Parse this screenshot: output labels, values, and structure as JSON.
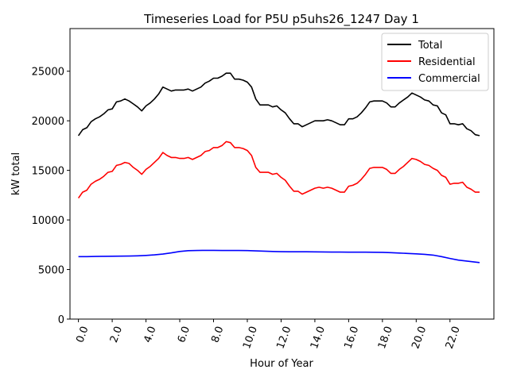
{
  "chart_data": {
    "type": "line",
    "title": "Timeseries Load for P5U p5uhs26_1247  Day 1",
    "xlabel": "Hour of Year",
    "ylabel": "kW total",
    "xlim": [
      -0.5,
      24.6
    ],
    "ylim": [
      0,
      29300
    ],
    "x_ticks": [
      0,
      2,
      4,
      6,
      8,
      10,
      12,
      14,
      16,
      18,
      20,
      22
    ],
    "x_tick_labels": [
      "0.0",
      "2.0",
      "4.0",
      "6.0",
      "8.0",
      "10.0",
      "12.0",
      "14.0",
      "16.0",
      "18.0",
      "20.0",
      "22.0"
    ],
    "y_ticks": [
      0,
      5000,
      10000,
      15000,
      20000,
      25000
    ],
    "y_tick_labels": [
      "0",
      "5000",
      "10000",
      "15000",
      "20000",
      "25000"
    ],
    "legend_position": "top-right",
    "grid": false,
    "series": [
      {
        "name": "Total",
        "color": "#000000",
        "points": [
          [
            0.0,
            18500
          ],
          [
            0.25,
            19100
          ],
          [
            0.5,
            19300
          ],
          [
            0.75,
            19900
          ],
          [
            1.0,
            20200
          ],
          [
            1.25,
            20400
          ],
          [
            1.5,
            20700
          ],
          [
            1.75,
            21100
          ],
          [
            2.0,
            21200
          ],
          [
            2.25,
            21900
          ],
          [
            2.5,
            22000
          ],
          [
            2.75,
            22200
          ],
          [
            3.0,
            22000
          ],
          [
            3.25,
            21700
          ],
          [
            3.5,
            21400
          ],
          [
            3.75,
            21000
          ],
          [
            4.0,
            21500
          ],
          [
            4.25,
            21800
          ],
          [
            4.5,
            22200
          ],
          [
            4.75,
            22700
          ],
          [
            5.0,
            23400
          ],
          [
            5.25,
            23200
          ],
          [
            5.5,
            23000
          ],
          [
            5.75,
            23100
          ],
          [
            6.0,
            23100
          ],
          [
            6.25,
            23100
          ],
          [
            6.5,
            23200
          ],
          [
            6.75,
            23000
          ],
          [
            7.0,
            23200
          ],
          [
            7.25,
            23400
          ],
          [
            7.5,
            23800
          ],
          [
            7.75,
            24000
          ],
          [
            8.0,
            24300
          ],
          [
            8.25,
            24300
          ],
          [
            8.5,
            24500
          ],
          [
            8.75,
            24800
          ],
          [
            9.0,
            24800
          ],
          [
            9.25,
            24200
          ],
          [
            9.5,
            24200
          ],
          [
            9.75,
            24100
          ],
          [
            10.0,
            23900
          ],
          [
            10.25,
            23400
          ],
          [
            10.5,
            22200
          ],
          [
            10.75,
            21600
          ],
          [
            11.0,
            21600
          ],
          [
            11.25,
            21600
          ],
          [
            11.5,
            21400
          ],
          [
            11.75,
            21500
          ],
          [
            12.0,
            21100
          ],
          [
            12.25,
            20800
          ],
          [
            12.5,
            20200
          ],
          [
            12.75,
            19700
          ],
          [
            13.0,
            19700
          ],
          [
            13.25,
            19400
          ],
          [
            13.5,
            19600
          ],
          [
            13.75,
            19800
          ],
          [
            14.0,
            20000
          ],
          [
            14.25,
            20000
          ],
          [
            14.5,
            20000
          ],
          [
            14.75,
            20100
          ],
          [
            15.0,
            20000
          ],
          [
            15.25,
            19800
          ],
          [
            15.5,
            19600
          ],
          [
            15.75,
            19600
          ],
          [
            16.0,
            20200
          ],
          [
            16.25,
            20200
          ],
          [
            16.5,
            20400
          ],
          [
            16.75,
            20800
          ],
          [
            17.0,
            21300
          ],
          [
            17.25,
            21900
          ],
          [
            17.5,
            22000
          ],
          [
            17.75,
            22000
          ],
          [
            18.0,
            22000
          ],
          [
            18.25,
            21800
          ],
          [
            18.5,
            21400
          ],
          [
            18.75,
            21400
          ],
          [
            19.0,
            21800
          ],
          [
            19.25,
            22100
          ],
          [
            19.5,
            22400
          ],
          [
            19.75,
            22800
          ],
          [
            20.0,
            22600
          ],
          [
            20.25,
            22400
          ],
          [
            20.5,
            22100
          ],
          [
            20.75,
            22000
          ],
          [
            21.0,
            21600
          ],
          [
            21.25,
            21500
          ],
          [
            21.5,
            20800
          ],
          [
            21.75,
            20600
          ],
          [
            22.0,
            19700
          ],
          [
            22.25,
            19700
          ],
          [
            22.5,
            19600
          ],
          [
            22.75,
            19700
          ],
          [
            23.0,
            19200
          ],
          [
            23.25,
            19000
          ],
          [
            23.5,
            18600
          ],
          [
            23.75,
            18500
          ]
        ]
      },
      {
        "name": "Residential",
        "color": "#ff0000",
        "points": [
          [
            0.0,
            12200
          ],
          [
            0.25,
            12800
          ],
          [
            0.5,
            13000
          ],
          [
            0.75,
            13600
          ],
          [
            1.0,
            13900
          ],
          [
            1.25,
            14100
          ],
          [
            1.5,
            14400
          ],
          [
            1.75,
            14800
          ],
          [
            2.0,
            14900
          ],
          [
            2.25,
            15500
          ],
          [
            2.5,
            15600
          ],
          [
            2.75,
            15800
          ],
          [
            3.0,
            15700
          ],
          [
            3.25,
            15300
          ],
          [
            3.5,
            15000
          ],
          [
            3.75,
            14600
          ],
          [
            4.0,
            15100
          ],
          [
            4.25,
            15400
          ],
          [
            4.5,
            15800
          ],
          [
            4.75,
            16200
          ],
          [
            5.0,
            16800
          ],
          [
            5.25,
            16500
          ],
          [
            5.5,
            16300
          ],
          [
            5.75,
            16300
          ],
          [
            6.0,
            16200
          ],
          [
            6.25,
            16200
          ],
          [
            6.5,
            16300
          ],
          [
            6.75,
            16100
          ],
          [
            7.0,
            16300
          ],
          [
            7.25,
            16500
          ],
          [
            7.5,
            16900
          ],
          [
            7.75,
            17000
          ],
          [
            8.0,
            17300
          ],
          [
            8.25,
            17300
          ],
          [
            8.5,
            17500
          ],
          [
            8.75,
            17900
          ],
          [
            9.0,
            17800
          ],
          [
            9.25,
            17300
          ],
          [
            9.5,
            17300
          ],
          [
            9.75,
            17200
          ],
          [
            10.0,
            17000
          ],
          [
            10.25,
            16500
          ],
          [
            10.5,
            15300
          ],
          [
            10.75,
            14800
          ],
          [
            11.0,
            14800
          ],
          [
            11.25,
            14800
          ],
          [
            11.5,
            14600
          ],
          [
            11.75,
            14700
          ],
          [
            12.0,
            14300
          ],
          [
            12.25,
            14000
          ],
          [
            12.5,
            13400
          ],
          [
            12.75,
            12900
          ],
          [
            13.0,
            12900
          ],
          [
            13.25,
            12600
          ],
          [
            13.5,
            12800
          ],
          [
            13.75,
            13000
          ],
          [
            14.0,
            13200
          ],
          [
            14.25,
            13300
          ],
          [
            14.5,
            13200
          ],
          [
            14.75,
            13300
          ],
          [
            15.0,
            13200
          ],
          [
            15.25,
            13000
          ],
          [
            15.5,
            12800
          ],
          [
            15.75,
            12800
          ],
          [
            16.0,
            13400
          ],
          [
            16.25,
            13500
          ],
          [
            16.5,
            13700
          ],
          [
            16.75,
            14100
          ],
          [
            17.0,
            14600
          ],
          [
            17.25,
            15200
          ],
          [
            17.5,
            15300
          ],
          [
            17.75,
            15300
          ],
          [
            18.0,
            15300
          ],
          [
            18.25,
            15100
          ],
          [
            18.5,
            14700
          ],
          [
            18.75,
            14700
          ],
          [
            19.0,
            15100
          ],
          [
            19.25,
            15400
          ],
          [
            19.5,
            15800
          ],
          [
            19.75,
            16200
          ],
          [
            20.0,
            16100
          ],
          [
            20.25,
            15900
          ],
          [
            20.5,
            15600
          ],
          [
            20.75,
            15500
          ],
          [
            21.0,
            15200
          ],
          [
            21.25,
            15000
          ],
          [
            21.5,
            14500
          ],
          [
            21.75,
            14300
          ],
          [
            22.0,
            13600
          ],
          [
            22.25,
            13700
          ],
          [
            22.5,
            13700
          ],
          [
            22.75,
            13800
          ],
          [
            23.0,
            13300
          ],
          [
            23.25,
            13100
          ],
          [
            23.5,
            12800
          ],
          [
            23.75,
            12800
          ]
        ]
      },
      {
        "name": "Commercial",
        "color": "#0000ff",
        "points": [
          [
            0.0,
            6300
          ],
          [
            0.5,
            6300
          ],
          [
            1.0,
            6320
          ],
          [
            1.5,
            6330
          ],
          [
            2.0,
            6340
          ],
          [
            2.5,
            6350
          ],
          [
            3.0,
            6360
          ],
          [
            3.5,
            6380
          ],
          [
            4.0,
            6420
          ],
          [
            4.5,
            6480
          ],
          [
            5.0,
            6560
          ],
          [
            5.5,
            6680
          ],
          [
            6.0,
            6820
          ],
          [
            6.5,
            6900
          ],
          [
            7.0,
            6920
          ],
          [
            7.5,
            6930
          ],
          [
            8.0,
            6930
          ],
          [
            8.5,
            6920
          ],
          [
            9.0,
            6920
          ],
          [
            9.5,
            6920
          ],
          [
            10.0,
            6910
          ],
          [
            10.5,
            6880
          ],
          [
            11.0,
            6850
          ],
          [
            11.5,
            6820
          ],
          [
            12.0,
            6800
          ],
          [
            12.5,
            6790
          ],
          [
            13.0,
            6790
          ],
          [
            13.5,
            6790
          ],
          [
            14.0,
            6780
          ],
          [
            14.5,
            6770
          ],
          [
            15.0,
            6760
          ],
          [
            15.5,
            6760
          ],
          [
            16.0,
            6750
          ],
          [
            16.5,
            6750
          ],
          [
            17.0,
            6750
          ],
          [
            17.5,
            6740
          ],
          [
            18.0,
            6730
          ],
          [
            18.5,
            6700
          ],
          [
            19.0,
            6660
          ],
          [
            19.5,
            6620
          ],
          [
            20.0,
            6580
          ],
          [
            20.5,
            6530
          ],
          [
            21.0,
            6450
          ],
          [
            21.5,
            6300
          ],
          [
            22.0,
            6120
          ],
          [
            22.5,
            5950
          ],
          [
            23.0,
            5850
          ],
          [
            23.5,
            5750
          ],
          [
            23.75,
            5700
          ]
        ]
      }
    ]
  }
}
